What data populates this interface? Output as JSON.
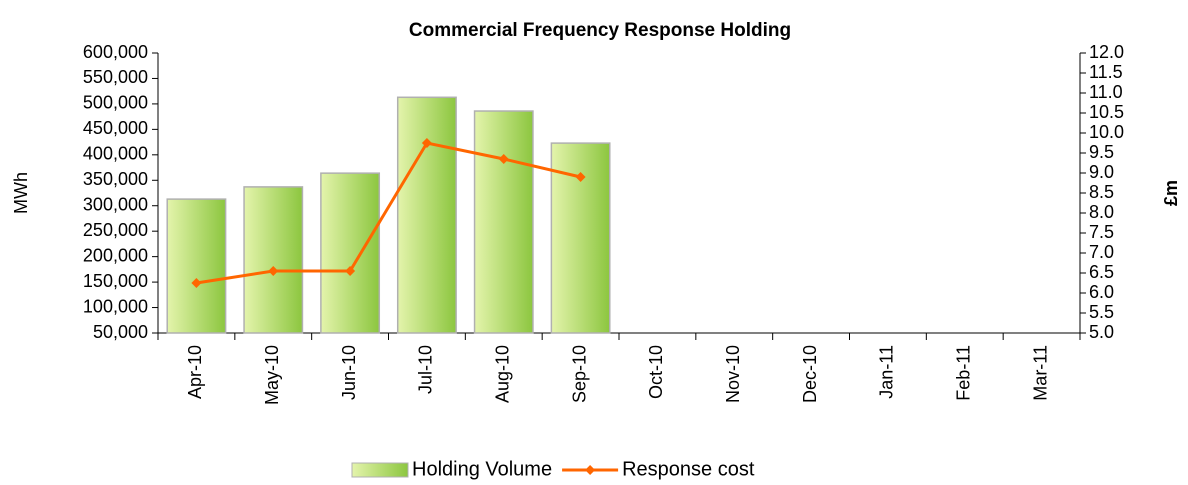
{
  "chart_data": {
    "type": "bar-line",
    "title": "Commercial Frequency Response Holding",
    "y_label": "MWh",
    "y2_label": "£m",
    "categories": [
      "Apr-10",
      "May-10",
      "Jun-10",
      "Jul-10",
      "Aug-10",
      "Sep-10",
      "Oct-10",
      "Nov-10",
      "Dec-10",
      "Jan-11",
      "Feb-11",
      "Mar-11"
    ],
    "series": [
      {
        "name": "Holding Volume",
        "type": "bar",
        "color": "#8cc63f",
        "values": [
          313000,
          337000,
          364000,
          513000,
          486000,
          423000,
          null,
          null,
          null,
          null,
          null,
          null
        ]
      },
      {
        "name": "Response cost",
        "type": "line",
        "axis": "y2",
        "color": "#ff6600",
        "values": [
          6.25,
          6.55,
          6.55,
          9.75,
          9.35,
          8.9,
          null,
          null,
          null,
          null,
          null,
          null
        ]
      }
    ],
    "ylim": [
      50000,
      600000
    ],
    "yticks": [
      {
        "value": 50000,
        "label": "50,000"
      },
      {
        "value": 100000,
        "label": "100,000"
      },
      {
        "value": 150000,
        "label": "150,000"
      },
      {
        "value": 200000,
        "label": "200,000"
      },
      {
        "value": 250000,
        "label": "250,000"
      },
      {
        "value": 300000,
        "label": "300,000"
      },
      {
        "value": 350000,
        "label": "350,000"
      },
      {
        "value": 400000,
        "label": "400,000"
      },
      {
        "value": 450000,
        "label": "450,000"
      },
      {
        "value": 500000,
        "label": "500,000"
      },
      {
        "value": 550000,
        "label": "550,000"
      },
      {
        "value": 600000,
        "label": "600,000"
      }
    ],
    "y2lim": [
      5,
      12
    ],
    "y2ticks": [
      {
        "value": 5,
        "label": "5.0"
      },
      5.5,
      {
        "value": 6,
        "label": "6.0"
      },
      6.5,
      {
        "value": 7,
        "label": "7.0"
      },
      7.5,
      {
        "value": 8,
        "label": "8.0"
      },
      8.5,
      {
        "value": 9,
        "label": "9.0"
      },
      9.5,
      {
        "value": 10,
        "label": "10.0"
      },
      10.5,
      {
        "value": 11,
        "label": "11.0"
      },
      11.5,
      {
        "value": 12,
        "label": "12.0"
      }
    ],
    "legend": "bottom"
  }
}
